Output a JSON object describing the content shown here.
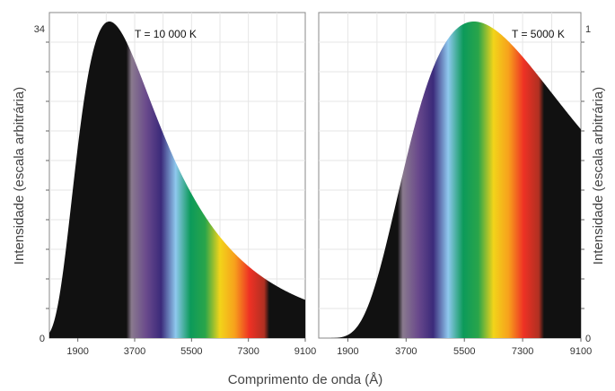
{
  "chart_data": [
    {
      "type": "area",
      "annotation": "T = 10 000 K",
      "ylabel": "Intensidade (escala arbitrária)",
      "xlabel": "Comprimento de onda (Å)",
      "xlim": [
        1000,
        9100
      ],
      "ylim": [
        0,
        34
      ],
      "x_ticks": [
        "1900",
        "3700",
        "5500",
        "7300",
        "9100"
      ],
      "y_ticks": [
        "0",
        "34"
      ],
      "temperature_K": 10000,
      "peak_value": 34,
      "visible_band_angstrom": [
        3600,
        7800
      ],
      "grid": true
    },
    {
      "type": "area",
      "annotation": "T = 5000 K",
      "ylabel": "Intensidade (escala arbitrária)",
      "xlim": [
        1000,
        9100
      ],
      "ylim": [
        0,
        1
      ],
      "x_ticks": [
        "1900",
        "3700",
        "5500",
        "7300",
        "9100"
      ],
      "y_ticks": [
        "0",
        "1"
      ],
      "temperature_K": 5000,
      "peak_value": 1,
      "visible_band_angstrom": [
        3600,
        7800
      ],
      "grid": true
    }
  ],
  "colors": {
    "outside_visible": "#111111",
    "spectrum": [
      "#8a7a8e",
      "#6a4a8c",
      "#3b2a7a",
      "#8ec8ee",
      "#0c9a5a",
      "#2aa54a",
      "#f2d41a",
      "#f7a11c",
      "#ee3124",
      "#b03022"
    ]
  }
}
